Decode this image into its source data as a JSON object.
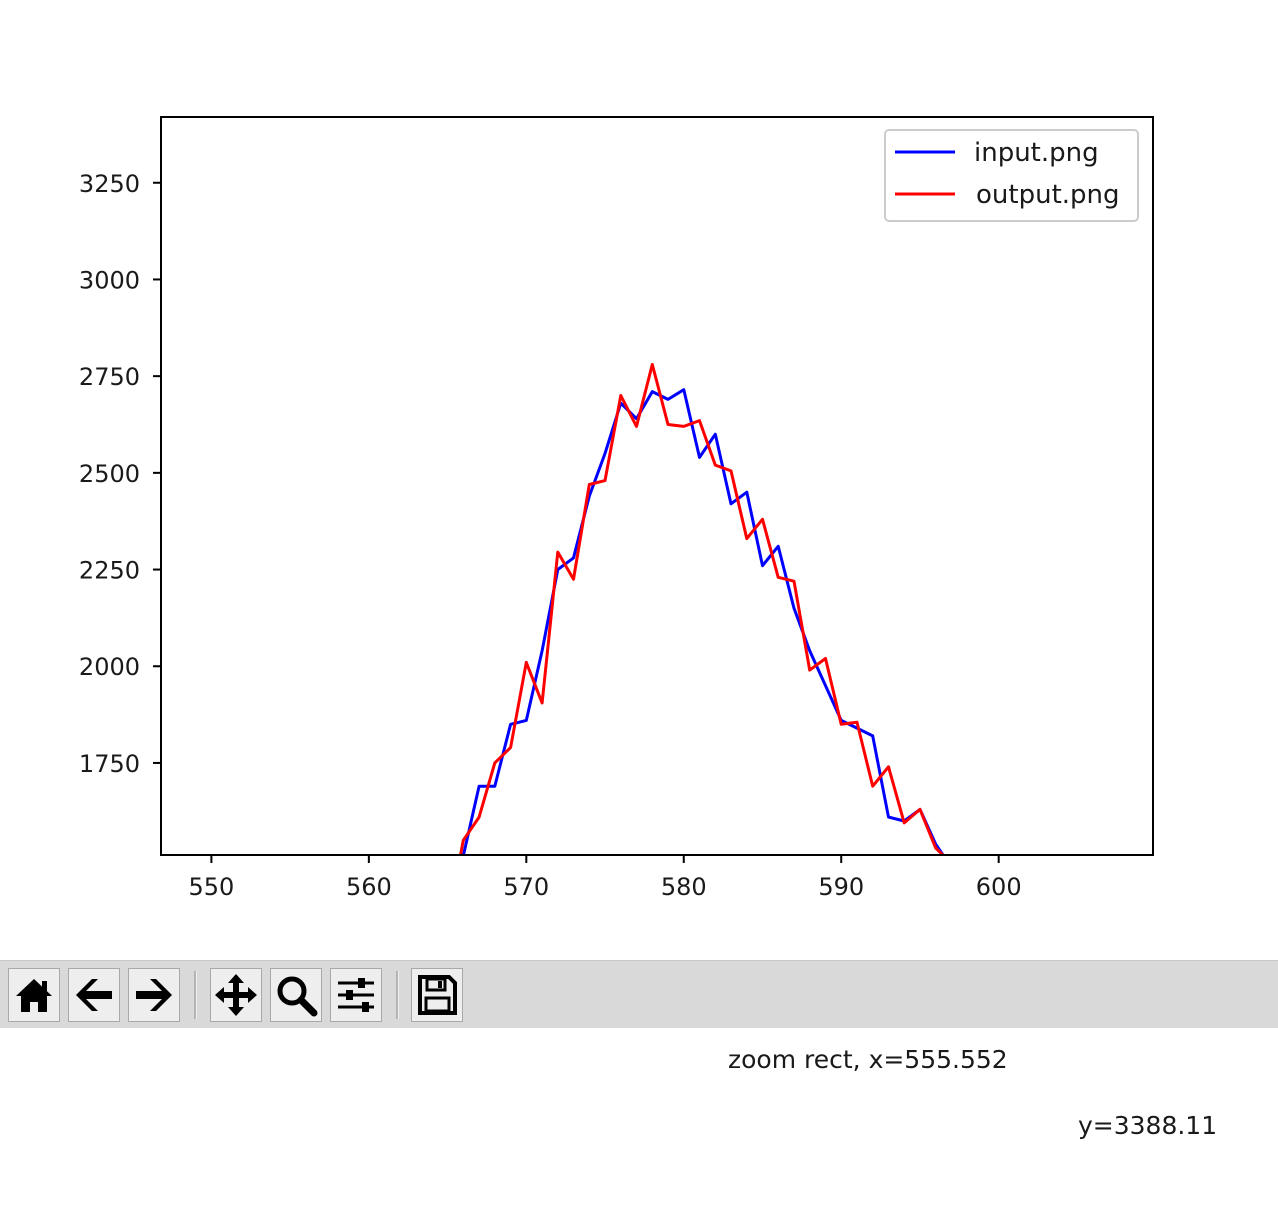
{
  "chart_data": {
    "type": "line",
    "title": "",
    "xlabel": "",
    "ylabel": "",
    "xlim": [
      546.8,
      609.8
    ],
    "ylim": [
      1512,
      3420
    ],
    "xticks": [
      550,
      560,
      570,
      580,
      590,
      600
    ],
    "xtick_labels": [
      "550",
      "560",
      "570",
      "580",
      "590",
      "600"
    ],
    "yticks": [
      1750,
      2000,
      2250,
      2500,
      2750,
      3000,
      3250
    ],
    "ytick_labels": [
      "1750",
      "2000",
      "2250",
      "2500",
      "2750",
      "3000",
      "3250"
    ],
    "legend_position": "top-right",
    "grid": false,
    "series": [
      {
        "name": "input.png",
        "color": "#0000ff",
        "points": [
          [
            565.8,
            1400
          ],
          [
            566,
            1510
          ],
          [
            567,
            1690
          ],
          [
            568,
            1690
          ],
          [
            569,
            1850
          ],
          [
            570,
            1860
          ],
          [
            571,
            2040
          ],
          [
            572,
            2250
          ],
          [
            573,
            2280
          ],
          [
            574,
            2440
          ],
          [
            575,
            2550
          ],
          [
            576,
            2680
          ],
          [
            577,
            2640
          ],
          [
            578,
            2710
          ],
          [
            579,
            2690
          ],
          [
            580,
            2715
          ],
          [
            581,
            2540
          ],
          [
            582,
            2600
          ],
          [
            583,
            2420
          ],
          [
            584,
            2450
          ],
          [
            585,
            2260
          ],
          [
            586,
            2310
          ],
          [
            587,
            2150
          ],
          [
            588,
            2040
          ],
          [
            589,
            1950
          ],
          [
            590,
            1860
          ],
          [
            591,
            1840
          ],
          [
            592,
            1820
          ],
          [
            593,
            1610
          ],
          [
            594,
            1600
          ],
          [
            595,
            1630
          ],
          [
            596,
            1540
          ],
          [
            596.5,
            1510
          ],
          [
            597,
            1420
          ]
        ]
      },
      {
        "name": "output.png",
        "color": "#ff0000",
        "points": [
          [
            565.3,
            1400
          ],
          [
            566,
            1550
          ],
          [
            567,
            1610
          ],
          [
            568,
            1750
          ],
          [
            569,
            1790
          ],
          [
            570,
            2010
          ],
          [
            571,
            1905
          ],
          [
            572,
            2295
          ],
          [
            573,
            2225
          ],
          [
            574,
            2470
          ],
          [
            575,
            2480
          ],
          [
            576,
            2700
          ],
          [
            577,
            2620
          ],
          [
            578,
            2780
          ],
          [
            579,
            2625
          ],
          [
            580,
            2620
          ],
          [
            581,
            2635
          ],
          [
            582,
            2520
          ],
          [
            583,
            2505
          ],
          [
            584,
            2330
          ],
          [
            585,
            2380
          ],
          [
            586,
            2230
          ],
          [
            587,
            2220
          ],
          [
            588,
            1990
          ],
          [
            589,
            2020
          ],
          [
            590,
            1850
          ],
          [
            591,
            1855
          ],
          [
            592,
            1690
          ],
          [
            593,
            1740
          ],
          [
            594,
            1595
          ],
          [
            595,
            1630
          ],
          [
            596,
            1530
          ],
          [
            596.5,
            1510
          ],
          [
            597,
            1420
          ]
        ]
      }
    ]
  },
  "toolbar": {
    "buttons": [
      {
        "name": "home-button",
        "icon": "home-icon"
      },
      {
        "name": "back-button",
        "icon": "arrow-left-icon"
      },
      {
        "name": "forward-button",
        "icon": "arrow-right-icon"
      },
      {
        "name": "pan-button",
        "icon": "move-icon"
      },
      {
        "name": "zoom-button",
        "icon": "magnifier-icon"
      },
      {
        "name": "configure-subplots-button",
        "icon": "sliders-icon"
      },
      {
        "name": "save-button",
        "icon": "floppy-disk-icon"
      }
    ],
    "status_x": "zoom rect, x=555.552",
    "status_y": "y=3388.11"
  }
}
